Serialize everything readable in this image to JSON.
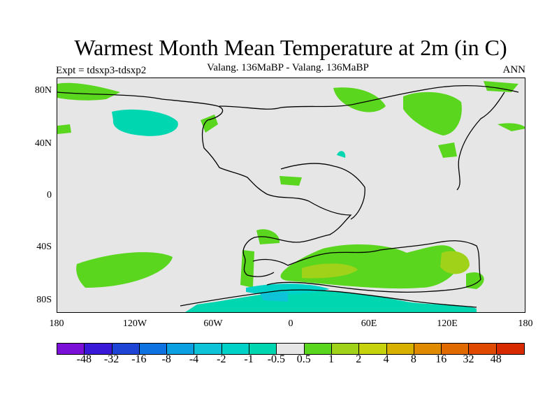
{
  "header": {
    "title": "Warmest Month Mean Temperature at 2m (in C)",
    "subtitle": "Valang. 136MaBP - Valang. 136MaBP",
    "left_label": "Expt = tdsxp3-tdsxp2",
    "right_label": "ANN"
  },
  "axes": {
    "y_ticks": [
      "80N",
      "40N",
      "0",
      "40S",
      "80S"
    ],
    "x_ticks": [
      "180",
      "120W",
      "60W",
      "0",
      "60E",
      "120E",
      "180"
    ]
  },
  "colorbar": {
    "colors": [
      "#7a10d8",
      "#3a18d8",
      "#1e44d6",
      "#0e72e0",
      "#0aa0e2",
      "#0ec2d8",
      "#00d2c8",
      "#00d6b0",
      "#e6e6e6",
      "#5ad61e",
      "#a0d21a",
      "#c6d20c",
      "#d8b000",
      "#e08a00",
      "#e06a00",
      "#e04a00",
      "#d82a00"
    ],
    "labels": [
      "-48",
      "-32",
      "-16",
      "-8",
      "-4",
      "-2",
      "-1",
      "-0.5",
      "0.5",
      "1",
      "2",
      "4",
      "8",
      "16",
      "32",
      "48"
    ]
  },
  "colors": {
    "background": "#e6e6e6",
    "land_outline": "#000000"
  }
}
